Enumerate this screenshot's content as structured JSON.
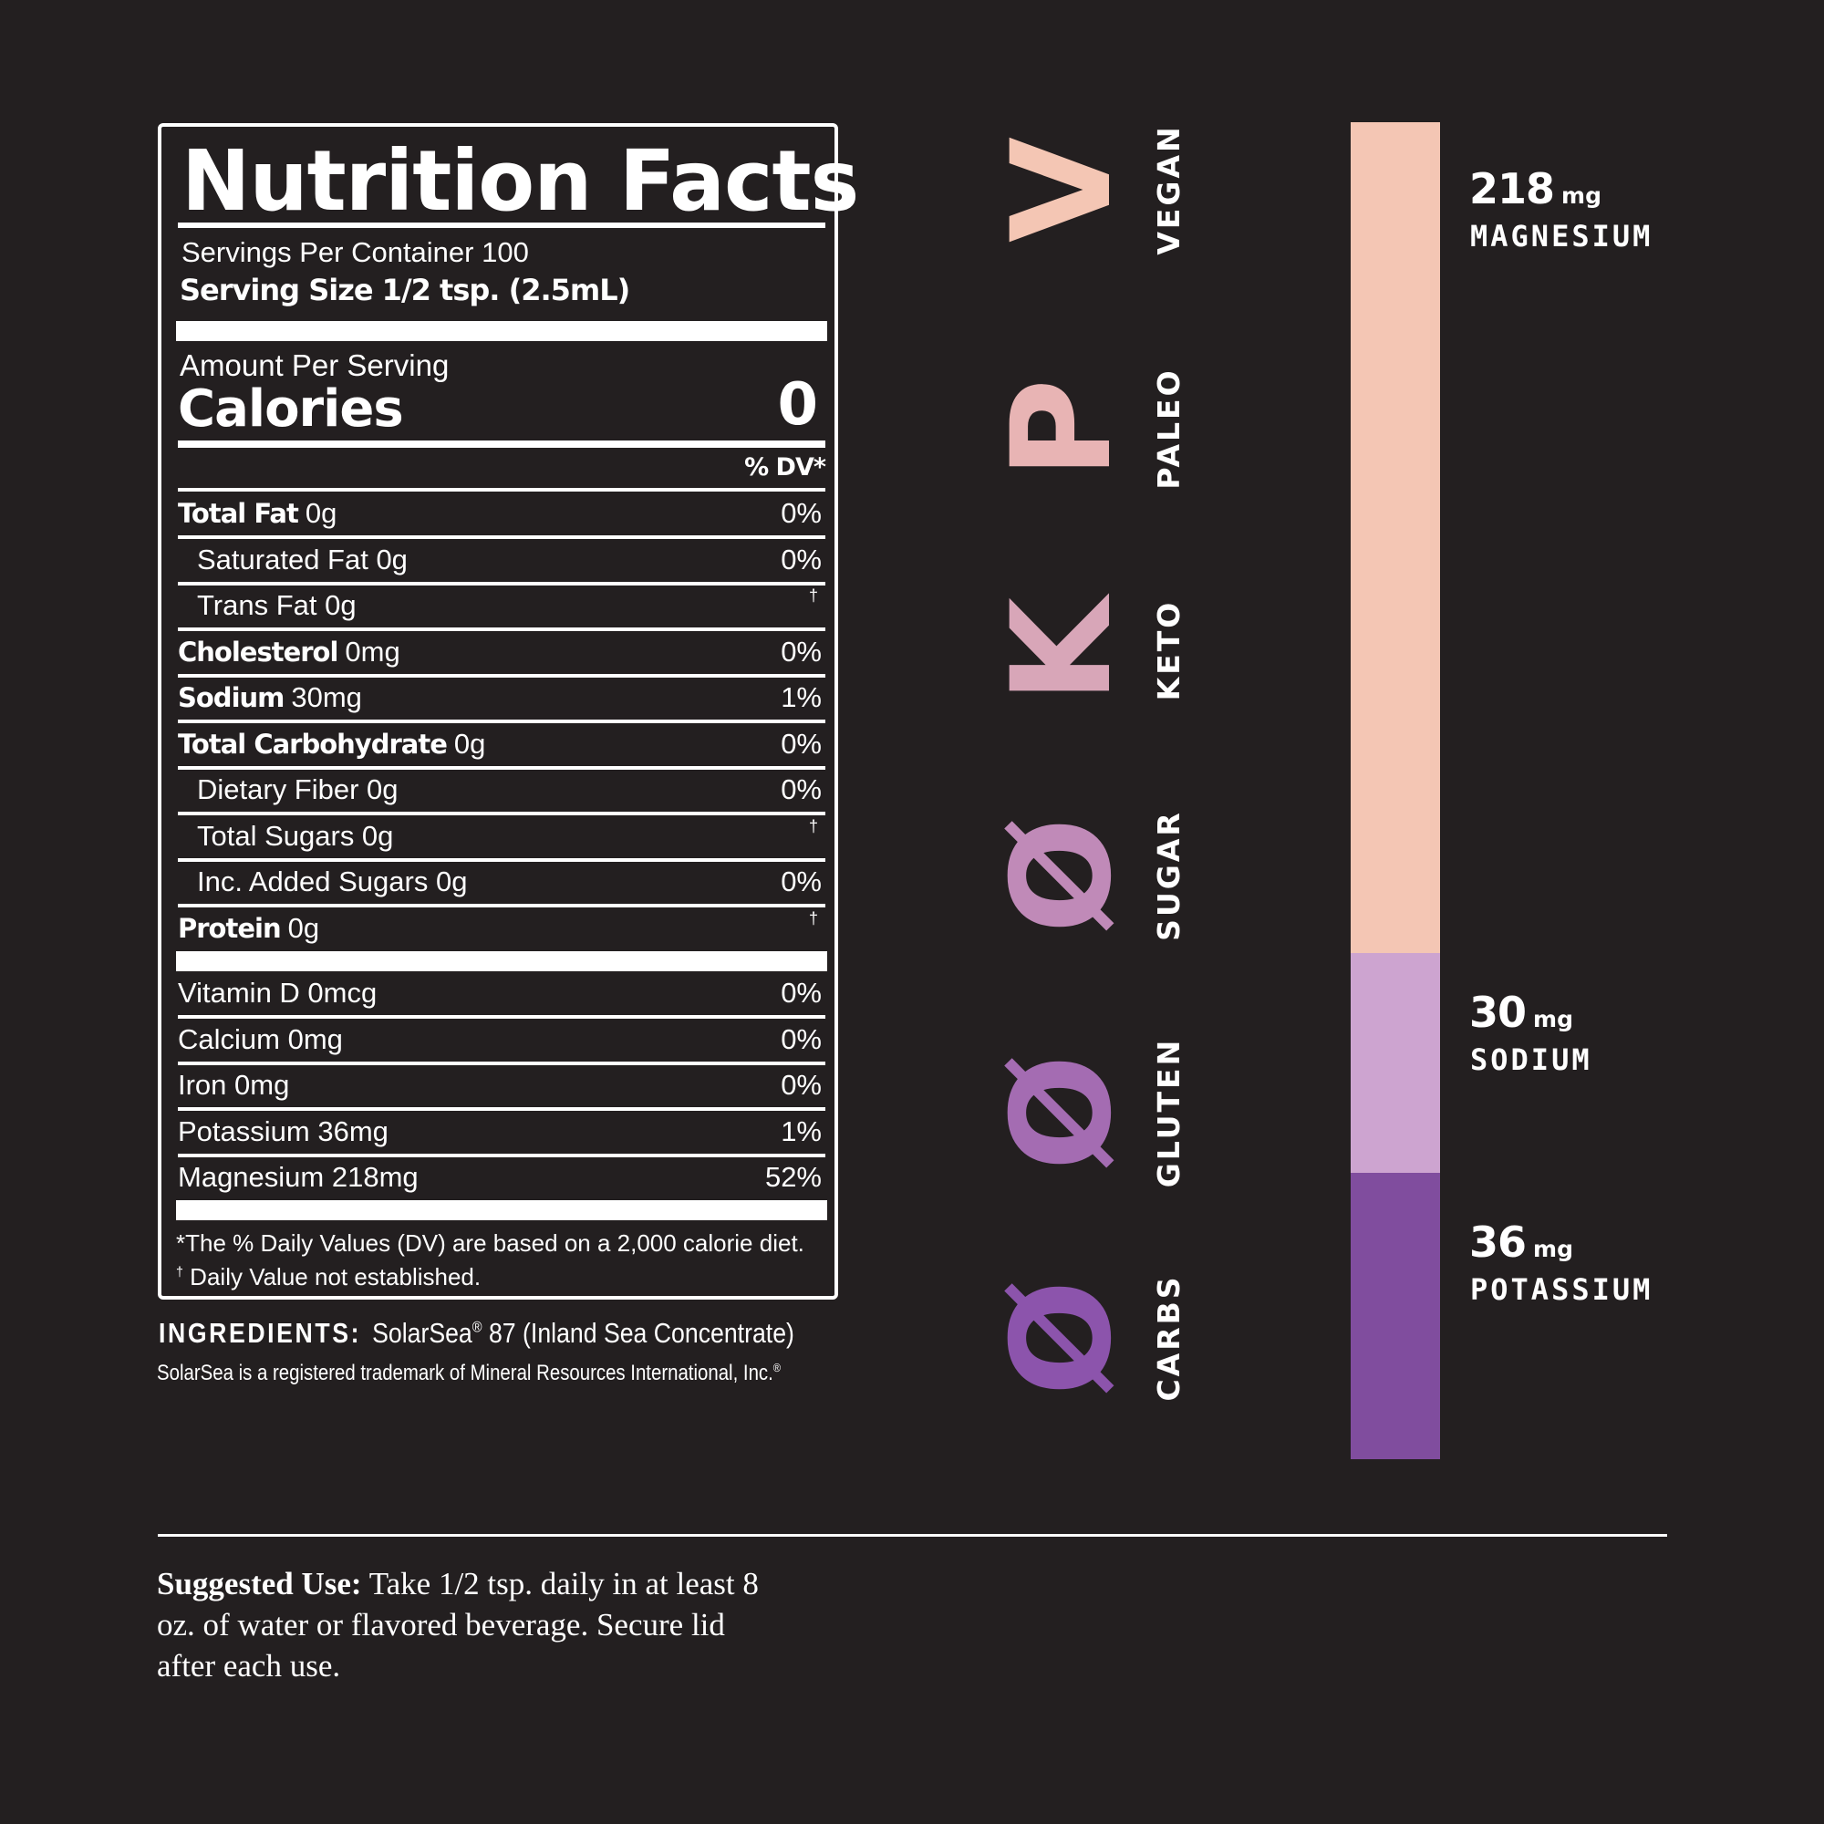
{
  "nutrition_facts": {
    "title": "Nutrition Facts",
    "servings_per_container": "Servings Per Container 100",
    "serving_size": "Serving Size 1/2 tsp. (2.5mL)",
    "amount_per_serving": "Amount Per Serving",
    "calories_label": "Calories",
    "calories_value": "0",
    "dv_header": "% DV*",
    "rows": [
      {
        "bold": "Total Fat",
        "name": "0g",
        "dv": "0%",
        "indent": false
      },
      {
        "bold": "",
        "name": "Saturated Fat 0g",
        "dv": "0%",
        "indent": true
      },
      {
        "bold": "",
        "name": "Trans Fat 0g",
        "dv": "†",
        "indent": true
      },
      {
        "bold": "Cholesterol",
        "name": "0mg",
        "dv": "0%",
        "indent": false
      },
      {
        "bold": "Sodium",
        "name": "30mg",
        "dv": "1%",
        "indent": false
      },
      {
        "bold": "Total Carbohydrate",
        "name": "0g",
        "dv": "0%",
        "indent": false
      },
      {
        "bold": "",
        "name": "Dietary Fiber 0g",
        "dv": "0%",
        "indent": true
      },
      {
        "bold": "",
        "name": "Total Sugars 0g",
        "dv": "†",
        "indent": true
      },
      {
        "bold": "",
        "name": "Inc. Added Sugars 0g",
        "dv": "0%",
        "indent": true
      },
      {
        "bold": "Protein",
        "name": "0g",
        "dv": "†",
        "indent": false
      }
    ],
    "micro_rows": [
      {
        "name": "Vitamin D 0mcg",
        "dv": "0%"
      },
      {
        "name": "Calcium 0mg",
        "dv": "0%"
      },
      {
        "name": "Iron 0mg",
        "dv": "0%"
      },
      {
        "name": "Potassium 36mg",
        "dv": "1%"
      },
      {
        "name": "Magnesium 218mg",
        "dv": "52%"
      }
    ],
    "footnote_dv": "*The % Daily Values (DV) are based on a 2,000 calorie diet.",
    "footnote_dagger_mark": "†",
    "footnote_dagger": " Daily Value not established."
  },
  "ingredients": {
    "label": "INGREDIENTS:",
    "text": "SolarSea",
    "reg_mark": "®",
    "text_after": " 87 (Inland Sea Concentrate)",
    "trademark_note": "SolarSea is a registered trademark of Mineral Resources International, Inc.",
    "trademark_reg": "®"
  },
  "diet_badges": [
    {
      "glyph": "V",
      "label": "VEGAN",
      "color": "#f4c6b4"
    },
    {
      "glyph": "P",
      "label": "PALEO",
      "color": "#e8b4b4"
    },
    {
      "glyph": "K",
      "label": "KETO",
      "color": "#d8a6b8"
    },
    {
      "glyph": "Ø",
      "label": "SUGAR",
      "color": "#c08ab8"
    },
    {
      "glyph": "Ø",
      "label": "GLUTEN",
      "color": "#a46cb2"
    },
    {
      "glyph": "Ø",
      "label": "CARBS",
      "color": "#8c54ac"
    }
  ],
  "minerals": [
    {
      "value": "218",
      "unit": "mg",
      "name": "MAGNESIUM",
      "color": "#f4c6b4"
    },
    {
      "value": "30",
      "unit": "mg",
      "name": "SODIUM",
      "color": "#cda4d0"
    },
    {
      "value": "36",
      "unit": "mg",
      "name": "POTASSIUM",
      "color": "#804d9e"
    }
  ],
  "chart_data": {
    "type": "bar",
    "title": "",
    "categories": [
      "Magnesium",
      "Sodium",
      "Potassium"
    ],
    "values": [
      218,
      30,
      36
    ],
    "unit": "mg",
    "stacked": true,
    "colors": [
      "#f4c6b4",
      "#cda4d0",
      "#804d9e"
    ]
  },
  "suggested_use": {
    "label": "Suggested Use:",
    "text": " Take 1/2 tsp. daily in at least 8 oz. of water or flavored beverage. Secure lid after each use."
  }
}
